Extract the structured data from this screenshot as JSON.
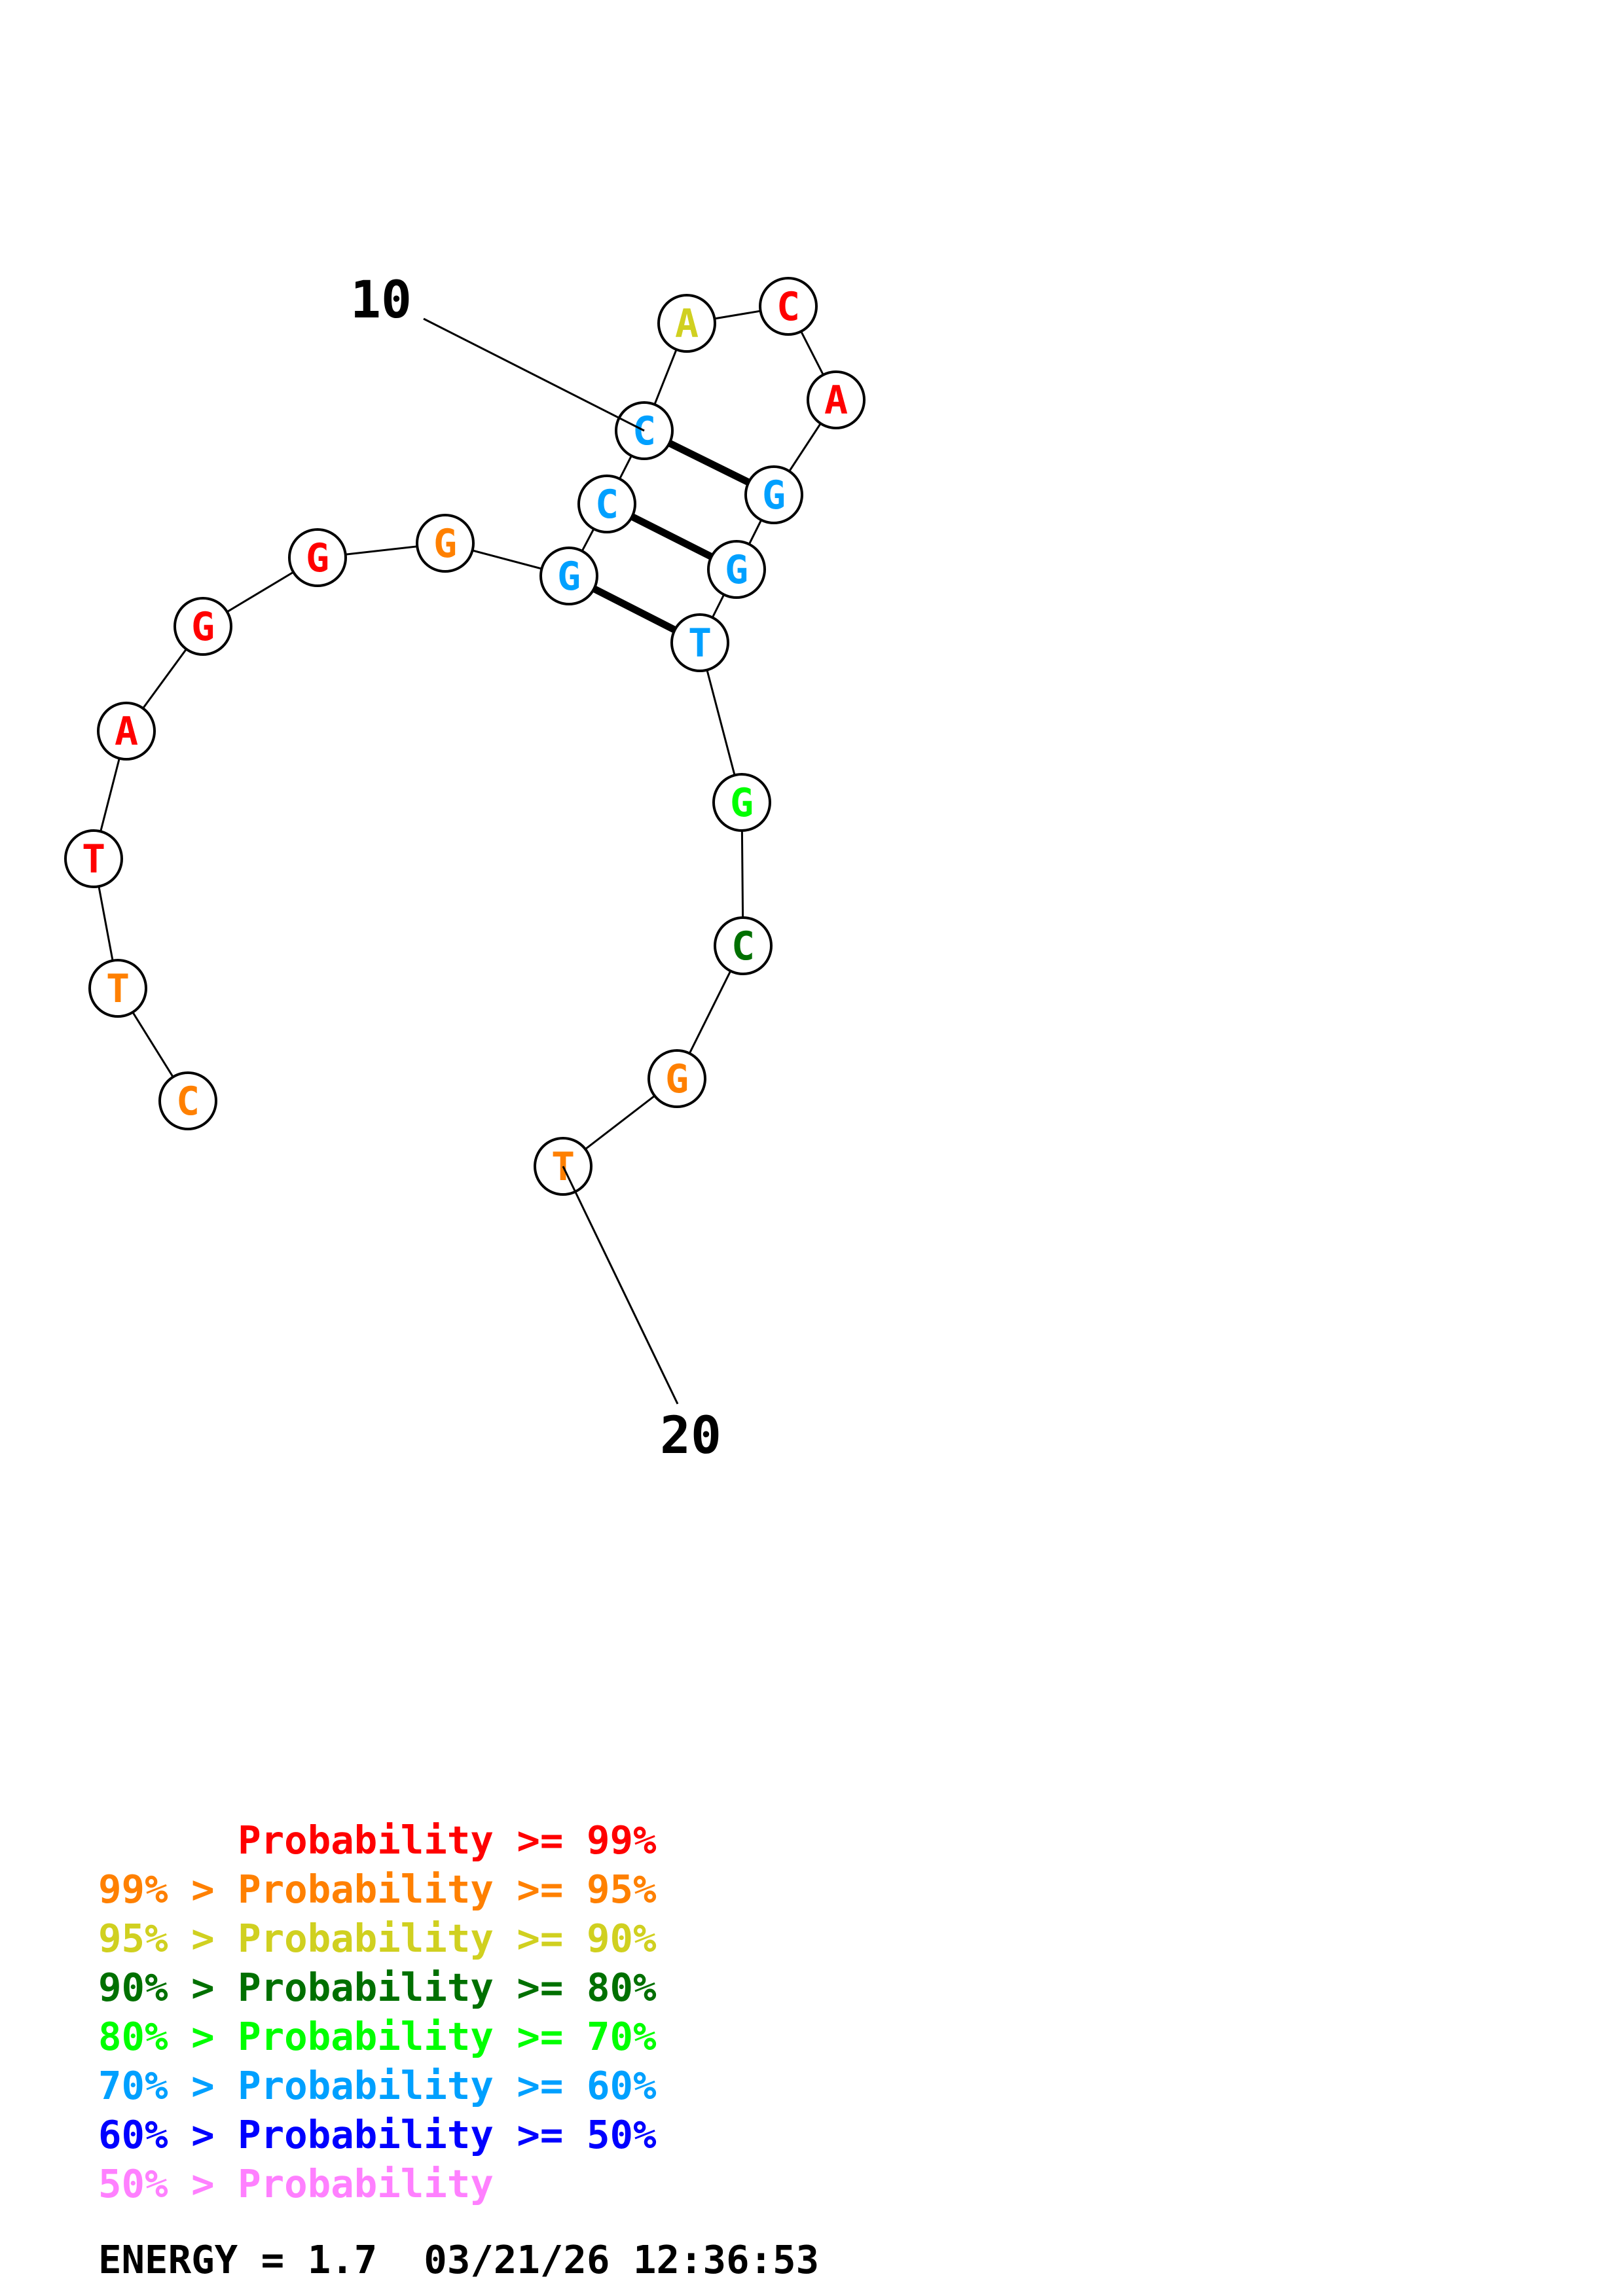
{
  "colors": {
    "p99": "#ff0000",
    "p95": "#ff8000",
    "p90": "#d0d020",
    "p80": "#007000",
    "p70": "#00ff00",
    "p60": "#00a0ff",
    "p50": "#0000ff",
    "below50": "#ff80ff"
  },
  "structure": {
    "bases": [
      {
        "letter": "C",
        "color": "#ff8000"
      },
      {
        "letter": "T",
        "color": "#ff8000"
      },
      {
        "letter": "T",
        "color": "#ff0000"
      },
      {
        "letter": "A",
        "color": "#ff0000"
      },
      {
        "letter": "G",
        "color": "#ff0000"
      },
      {
        "letter": "G",
        "color": "#ff0000"
      },
      {
        "letter": "G",
        "color": "#ff8000"
      },
      {
        "letter": "G",
        "color": "#00a0ff"
      },
      {
        "letter": "C",
        "color": "#00a0ff"
      },
      {
        "letter": "C",
        "color": "#00a0ff"
      },
      {
        "letter": "A",
        "color": "#d0d020"
      },
      {
        "letter": "C",
        "color": "#ff0000"
      },
      {
        "letter": "A",
        "color": "#ff0000"
      },
      {
        "letter": "G",
        "color": "#00a0ff"
      },
      {
        "letter": "G",
        "color": "#00a0ff"
      },
      {
        "letter": "T",
        "color": "#00a0ff"
      },
      {
        "letter": "G",
        "color": "#00ff00"
      },
      {
        "letter": "C",
        "color": "#007000"
      },
      {
        "letter": "G",
        "color": "#ff8000"
      },
      {
        "letter": "T",
        "color": "#ff8000"
      }
    ],
    "pairs": [
      [
        8,
        16
      ],
      [
        9,
        15
      ],
      [
        10,
        14
      ]
    ],
    "index_labels": [
      {
        "text": "10",
        "base": 10
      },
      {
        "text": "20",
        "base": 20
      }
    ]
  },
  "legend": [
    {
      "prefix": "    ",
      "text": "Probability >= 99%",
      "color": "#ff0000"
    },
    {
      "prefix": "99% > ",
      "text": "Probability >= 95%",
      "color": "#ff8000"
    },
    {
      "prefix": "95% > ",
      "text": "Probability >= 90%",
      "color": "#d0d020"
    },
    {
      "prefix": "90% > ",
      "text": "Probability >= 80%",
      "color": "#007000"
    },
    {
      "prefix": "80% > ",
      "text": "Probability >= 70%",
      "color": "#00ff00"
    },
    {
      "prefix": "70% > ",
      "text": "Probability >= 60%",
      "color": "#00a0ff"
    },
    {
      "prefix": "60% > ",
      "text": "Probability >= 50%",
      "color": "#0000ff"
    },
    {
      "prefix": "50% > ",
      "text": "Probability",
      "color": "#ff80ff"
    }
  ],
  "footer": {
    "energy": "ENERGY = 1.7  03/21/26 12:36:53"
  }
}
